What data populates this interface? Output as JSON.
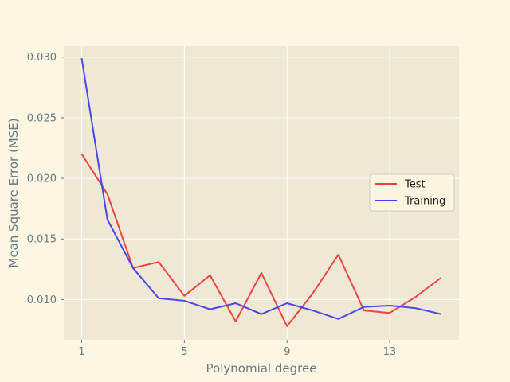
{
  "chart_data": {
    "type": "line",
    "title": "",
    "xlabel": "Polynomial degree",
    "ylabel": "Mean Square Error (MSE)",
    "xlim": [
      0.3,
      15.7
    ],
    "ylim": [
      0.00668,
      0.0309
    ],
    "x_ticks": [
      {
        "value": 1,
        "label": "1"
      },
      {
        "value": 5,
        "label": "5"
      },
      {
        "value": 9,
        "label": "9"
      },
      {
        "value": 13,
        "label": "13"
      }
    ],
    "y_ticks": [
      {
        "value": 0.01,
        "label": "0.010"
      },
      {
        "value": 0.015,
        "label": "0.015"
      },
      {
        "value": 0.02,
        "label": "0.020"
      },
      {
        "value": 0.025,
        "label": "0.025"
      },
      {
        "value": 0.03,
        "label": "0.030"
      }
    ],
    "grid": true,
    "legend_position": "center-right",
    "x": [
      1,
      2,
      3,
      4,
      5,
      6,
      7,
      8,
      9,
      10,
      11,
      12,
      13,
      14,
      15
    ],
    "series": [
      {
        "name": "Test",
        "color": "#ef3b3b",
        "values": [
          0.022,
          0.0187,
          0.0126,
          0.0131,
          0.0103,
          0.012,
          0.0082,
          0.0122,
          0.0078,
          0.0105,
          0.0137,
          0.0091,
          0.0089,
          0.0102,
          0.0118
        ]
      },
      {
        "name": "Training",
        "color": "#3f3fef",
        "values": [
          0.0299,
          0.0166,
          0.0126,
          0.0101,
          0.0099,
          0.0092,
          0.0097,
          0.0088,
          0.0097,
          0.0091,
          0.0084,
          0.0094,
          0.0095,
          0.0093,
          0.0088
        ]
      }
    ]
  },
  "colors": {
    "page_background": "#fdf6e3",
    "plot_background": "#eee8d5",
    "grid": "#ffffff",
    "text": "#657b83"
  }
}
